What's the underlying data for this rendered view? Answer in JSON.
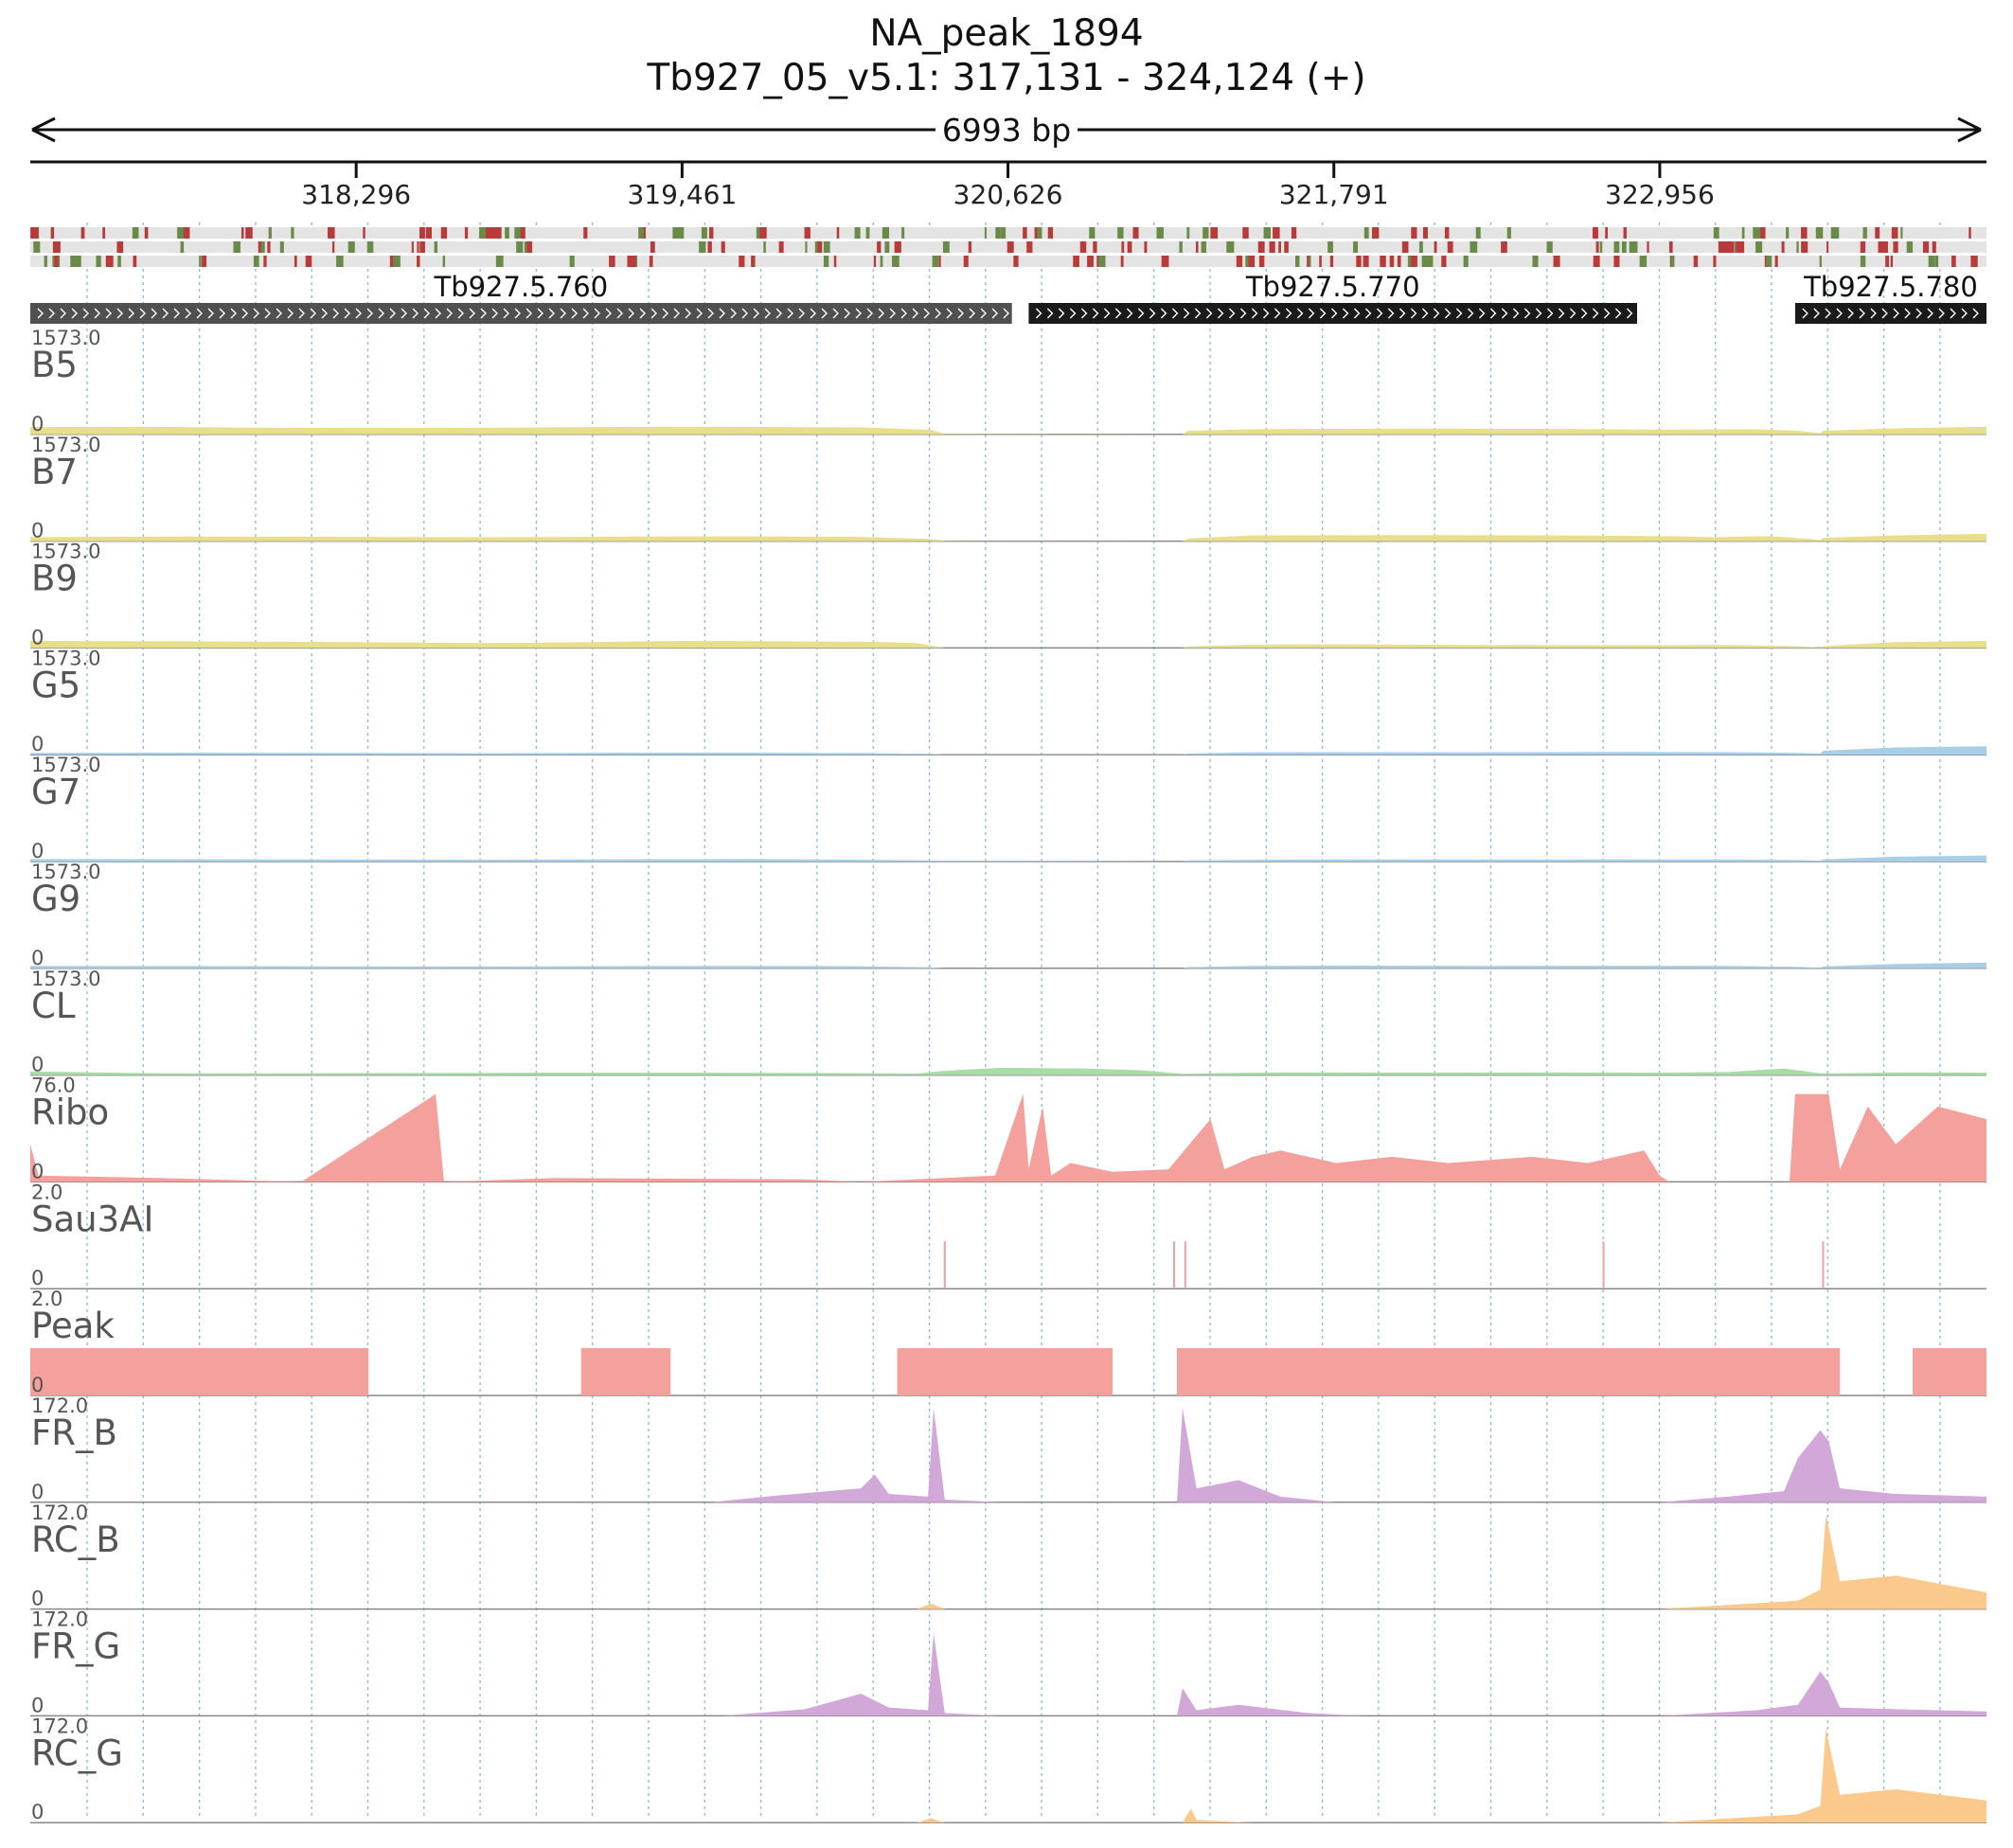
{
  "header": {
    "title": "NA_peak_1894",
    "locus": "Tb927_05_v5.1: 317,131 - 324,124 (+)",
    "span_label": "6993 bp"
  },
  "chart_data": {
    "type": "area",
    "title": "NA_peak_1894",
    "subtitle": "Tb927_05_v5.1: 317,131 - 324,124 (+)",
    "chromosome": "Tb927_05_v5.1",
    "strand": "+",
    "xlim": [
      317131,
      324124
    ],
    "x_ticks": [
      "318,296",
      "319,461",
      "320,626",
      "321,791",
      "322,956"
    ],
    "x_tick_values": [
      318296,
      319461,
      320626,
      321791,
      322956
    ],
    "grid": "vertical dotted",
    "genes": [
      {
        "name": "Tb927.5.760",
        "start": 317131,
        "end": 320640,
        "strand": "+",
        "color": "#505050"
      },
      {
        "name": "Tb927.5.770",
        "start": 320700,
        "end": 322875,
        "strand": "+",
        "color": "#1a1a1a"
      },
      {
        "name": "Tb927.5.780",
        "start": 323440,
        "end": 324124,
        "strand": "+",
        "color": "#1a1a1a"
      }
    ],
    "tracks": [
      {
        "name": "B5",
        "max": "1573.0",
        "min": "0",
        "color": "#e8df8c",
        "points": [
          [
            317131,
            120
          ],
          [
            317500,
            125
          ],
          [
            318000,
            110
          ],
          [
            318500,
            105
          ],
          [
            319000,
            115
          ],
          [
            319461,
            125
          ],
          [
            319800,
            120
          ],
          [
            320100,
            115
          ],
          [
            320350,
            75
          ],
          [
            320400,
            10
          ],
          [
            320800,
            5
          ],
          [
            321250,
            0
          ],
          [
            321270,
            60
          ],
          [
            321500,
            85
          ],
          [
            322000,
            95
          ],
          [
            322500,
            90
          ],
          [
            322956,
            80
          ],
          [
            323300,
            85
          ],
          [
            323450,
            60
          ],
          [
            323530,
            20
          ],
          [
            323540,
            60
          ],
          [
            323800,
            100
          ],
          [
            324124,
            125
          ]
        ]
      },
      {
        "name": "B7",
        "max": "1573.0",
        "min": "0",
        "color": "#e8df8c",
        "points": [
          [
            317131,
            65
          ],
          [
            317700,
            75
          ],
          [
            318300,
            70
          ],
          [
            318800,
            65
          ],
          [
            319300,
            75
          ],
          [
            319700,
            78
          ],
          [
            320100,
            70
          ],
          [
            320350,
            35
          ],
          [
            320400,
            5
          ],
          [
            321250,
            0
          ],
          [
            321270,
            45
          ],
          [
            321500,
            95
          ],
          [
            322000,
            100
          ],
          [
            322500,
            95
          ],
          [
            322956,
            85
          ],
          [
            323150,
            65
          ],
          [
            323350,
            85
          ],
          [
            323450,
            50
          ],
          [
            323530,
            20
          ],
          [
            323540,
            55
          ],
          [
            323800,
            95
          ],
          [
            324124,
            120
          ]
        ]
      },
      {
        "name": "B9",
        "max": "1573.0",
        "min": "0",
        "color": "#e8df8c",
        "points": [
          [
            317131,
            115
          ],
          [
            317700,
            110
          ],
          [
            318300,
            95
          ],
          [
            318800,
            80
          ],
          [
            319200,
            100
          ],
          [
            319461,
            115
          ],
          [
            319800,
            110
          ],
          [
            320150,
            100
          ],
          [
            320300,
            80
          ],
          [
            320400,
            0
          ],
          [
            321250,
            0
          ],
          [
            321270,
            25
          ],
          [
            321500,
            55
          ],
          [
            321800,
            60
          ],
          [
            322300,
            50
          ],
          [
            322800,
            45
          ],
          [
            323200,
            50
          ],
          [
            323450,
            30
          ],
          [
            323530,
            5
          ],
          [
            323540,
            30
          ],
          [
            323800,
            95
          ],
          [
            324124,
            115
          ]
        ]
      },
      {
        "name": "G5",
        "max": "1573.0",
        "min": "0",
        "color": "#a9cfe8",
        "points": [
          [
            317131,
            30
          ],
          [
            317700,
            35
          ],
          [
            318300,
            30
          ],
          [
            318800,
            25
          ],
          [
            319300,
            35
          ],
          [
            319700,
            35
          ],
          [
            320100,
            28
          ],
          [
            320350,
            15
          ],
          [
            320400,
            3
          ],
          [
            321250,
            3
          ],
          [
            321270,
            20
          ],
          [
            321500,
            40
          ],
          [
            321800,
            42
          ],
          [
            322300,
            40
          ],
          [
            322800,
            45
          ],
          [
            323200,
            42
          ],
          [
            323450,
            30
          ],
          [
            323530,
            20
          ],
          [
            323540,
            65
          ],
          [
            323800,
            120
          ],
          [
            324124,
            140
          ]
        ]
      },
      {
        "name": "G7",
        "max": "1573.0",
        "min": "0",
        "color": "#a9cfe8",
        "points": [
          [
            317131,
            40
          ],
          [
            317700,
            38
          ],
          [
            318300,
            33
          ],
          [
            318800,
            30
          ],
          [
            319300,
            38
          ],
          [
            319700,
            40
          ],
          [
            320100,
            30
          ],
          [
            320350,
            18
          ],
          [
            320400,
            8
          ],
          [
            320800,
            10
          ],
          [
            321250,
            2
          ],
          [
            321270,
            20
          ],
          [
            321500,
            30
          ],
          [
            321800,
            35
          ],
          [
            322300,
            33
          ],
          [
            322800,
            35
          ],
          [
            323200,
            33
          ],
          [
            323450,
            25
          ],
          [
            323530,
            15
          ],
          [
            323540,
            35
          ],
          [
            323800,
            80
          ],
          [
            324124,
            100
          ]
        ]
      },
      {
        "name": "G9",
        "max": "1573.0",
        "min": "0",
        "color": "#a9cfe8",
        "points": [
          [
            317131,
            40
          ],
          [
            317700,
            38
          ],
          [
            318300,
            33
          ],
          [
            318800,
            30
          ],
          [
            319300,
            38
          ],
          [
            319700,
            40
          ],
          [
            320100,
            35
          ],
          [
            320350,
            15
          ],
          [
            320400,
            0
          ],
          [
            321250,
            0
          ],
          [
            321270,
            20
          ],
          [
            321500,
            40
          ],
          [
            321800,
            45
          ],
          [
            322300,
            40
          ],
          [
            322800,
            42
          ],
          [
            323200,
            40
          ],
          [
            323450,
            25
          ],
          [
            323530,
            8
          ],
          [
            323540,
            30
          ],
          [
            323800,
            70
          ],
          [
            324124,
            95
          ]
        ]
      },
      {
        "name": "CL",
        "max": "1573.0",
        "min": "0",
        "color": "#a9dca6",
        "points": [
          [
            317131,
            60
          ],
          [
            317600,
            30
          ],
          [
            318000,
            30
          ],
          [
            318500,
            35
          ],
          [
            319000,
            40
          ],
          [
            319461,
            40
          ],
          [
            320000,
            35
          ],
          [
            320300,
            25
          ],
          [
            320400,
            70
          ],
          [
            320600,
            120
          ],
          [
            320900,
            110
          ],
          [
            321100,
            80
          ],
          [
            321250,
            20
          ],
          [
            321400,
            35
          ],
          [
            321600,
            45
          ],
          [
            322000,
            42
          ],
          [
            322500,
            45
          ],
          [
            322956,
            40
          ],
          [
            323200,
            50
          ],
          [
            323400,
            110
          ],
          [
            323530,
            30
          ],
          [
            323600,
            30
          ],
          [
            323800,
            45
          ],
          [
            324124,
            40
          ]
        ]
      },
      {
        "name": "Ribo",
        "max": "76.0",
        "min": "0",
        "color": "#f4a09c",
        "points": [
          [
            317131,
            30
          ],
          [
            317160,
            5
          ],
          [
            317600,
            3
          ],
          [
            318100,
            0
          ],
          [
            318580,
            70
          ],
          [
            318610,
            0
          ],
          [
            319000,
            3
          ],
          [
            319900,
            2
          ],
          [
            320100,
            0
          ],
          [
            320580,
            5
          ],
          [
            320680,
            70
          ],
          [
            320700,
            10
          ],
          [
            320750,
            60
          ],
          [
            320780,
            5
          ],
          [
            320850,
            15
          ],
          [
            321000,
            8
          ],
          [
            321200,
            10
          ],
          [
            321350,
            50
          ],
          [
            321400,
            10
          ],
          [
            321500,
            20
          ],
          [
            321600,
            25
          ],
          [
            321800,
            15
          ],
          [
            322000,
            20
          ],
          [
            322200,
            15
          ],
          [
            322500,
            20
          ],
          [
            322700,
            15
          ],
          [
            322900,
            25
          ],
          [
            322956,
            5
          ],
          [
            322990,
            0
          ],
          [
            323420,
            0
          ],
          [
            323440,
            70
          ],
          [
            323560,
            70
          ],
          [
            323600,
            10
          ],
          [
            323700,
            60
          ],
          [
            323800,
            30
          ],
          [
            323950,
            60
          ],
          [
            324124,
            50
          ]
        ]
      },
      {
        "name": "Sau3AI",
        "max": "2.0",
        "min": "0",
        "color": "#f4a09c",
        "points": [
          [
            320400,
            1
          ],
          [
            321220,
            1
          ],
          [
            321260,
            1
          ],
          [
            322755,
            1
          ],
          [
            323540,
            1
          ]
        ]
      },
      {
        "name": "Peak",
        "max": "2.0",
        "min": "0",
        "color": "#f4a09c",
        "points": [
          [
            317131,
            1
          ],
          [
            318340,
            1
          ],
          [
            319100,
            1
          ],
          [
            319420,
            1
          ],
          [
            320230,
            1
          ],
          [
            321000,
            1
          ],
          [
            321230,
            1
          ],
          [
            323600,
            1
          ],
          [
            323860,
            1
          ],
          [
            324124,
            1
          ]
        ]
      },
      {
        "name": "FR_B",
        "max": "172.0",
        "min": "0",
        "color": "#d2a8d8",
        "points": [
          [
            317131,
            0
          ],
          [
            319560,
            0
          ],
          [
            319800,
            12
          ],
          [
            320100,
            25
          ],
          [
            320150,
            50
          ],
          [
            320200,
            15
          ],
          [
            320340,
            10
          ],
          [
            320360,
            170
          ],
          [
            320400,
            5
          ],
          [
            320600,
            0
          ],
          [
            321000,
            0
          ],
          [
            321230,
            0
          ],
          [
            321250,
            170
          ],
          [
            321300,
            25
          ],
          [
            321450,
            40
          ],
          [
            321600,
            10
          ],
          [
            321800,
            0
          ],
          [
            322956,
            0
          ],
          [
            323200,
            10
          ],
          [
            323400,
            20
          ],
          [
            323450,
            80
          ],
          [
            323530,
            130
          ],
          [
            323560,
            110
          ],
          [
            323600,
            25
          ],
          [
            323800,
            15
          ],
          [
            324124,
            10
          ]
        ]
      },
      {
        "name": "RC_B",
        "max": "172.0",
        "min": "0",
        "color": "#fbc98b",
        "points": [
          [
            317131,
            0
          ],
          [
            320300,
            0
          ],
          [
            320350,
            10
          ],
          [
            320400,
            0
          ],
          [
            322956,
            0
          ],
          [
            323450,
            15
          ],
          [
            323530,
            35
          ],
          [
            323550,
            170
          ],
          [
            323600,
            50
          ],
          [
            323800,
            60
          ],
          [
            324124,
            30
          ]
        ]
      },
      {
        "name": "FR_G",
        "max": "172.0",
        "min": "0",
        "color": "#d2a8d8",
        "points": [
          [
            317131,
            0
          ],
          [
            319600,
            0
          ],
          [
            319900,
            12
          ],
          [
            320100,
            40
          ],
          [
            320200,
            15
          ],
          [
            320340,
            10
          ],
          [
            320360,
            150
          ],
          [
            320400,
            5
          ],
          [
            320600,
            0
          ],
          [
            321230,
            0
          ],
          [
            321250,
            50
          ],
          [
            321300,
            10
          ],
          [
            321450,
            20
          ],
          [
            321700,
            5
          ],
          [
            321900,
            0
          ],
          [
            322956,
            0
          ],
          [
            323300,
            10
          ],
          [
            323450,
            20
          ],
          [
            323530,
            80
          ],
          [
            323560,
            60
          ],
          [
            323600,
            15
          ],
          [
            323800,
            12
          ],
          [
            324124,
            8
          ]
        ]
      },
      {
        "name": "RC_G",
        "max": "172.0",
        "min": "0",
        "color": "#fbc98b",
        "points": [
          [
            317131,
            0
          ],
          [
            320300,
            0
          ],
          [
            320350,
            8
          ],
          [
            320400,
            0
          ],
          [
            321250,
            0
          ],
          [
            321280,
            25
          ],
          [
            321300,
            5
          ],
          [
            321500,
            0
          ],
          [
            322956,
            0
          ],
          [
            323450,
            15
          ],
          [
            323530,
            30
          ],
          [
            323550,
            170
          ],
          [
            323600,
            50
          ],
          [
            323800,
            60
          ],
          [
            324124,
            40
          ]
        ]
      }
    ]
  }
}
